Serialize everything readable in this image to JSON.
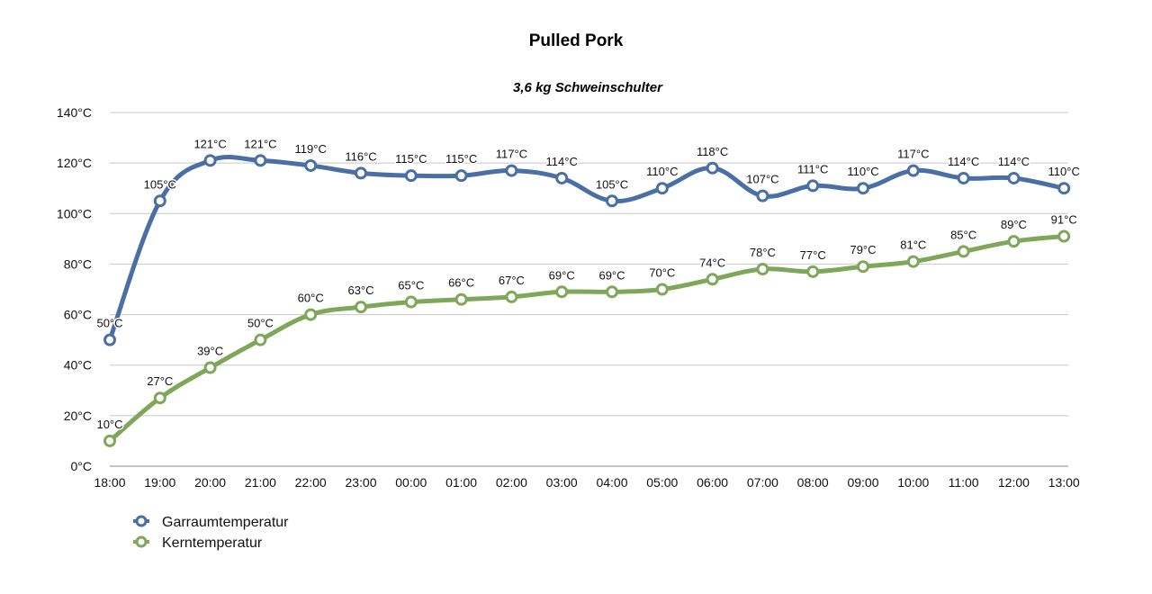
{
  "chart_data": {
    "type": "line",
    "title": "Pulled Pork",
    "subtitle": "3,6 kg Schweinschulter",
    "xlabel": "",
    "ylabel": "",
    "categories": [
      "18:00",
      "19:00",
      "20:00",
      "21:00",
      "22:00",
      "23:00",
      "00:00",
      "01:00",
      "02:00",
      "03:00",
      "04:00",
      "05:00",
      "06:00",
      "07:00",
      "08:00",
      "09:00",
      "10:00",
      "11:00",
      "12:00",
      "13:00"
    ],
    "ylim": [
      0,
      140
    ],
    "yticks": [
      0,
      20,
      40,
      60,
      80,
      100,
      120,
      140
    ],
    "y_unit": "°C",
    "grid": true,
    "legend_position": "bottom-left",
    "series": [
      {
        "name": "Garraumtemperatur",
        "color": "#4a6fa5",
        "values": [
          50,
          105,
          121,
          121,
          119,
          116,
          115,
          115,
          117,
          114,
          105,
          110,
          118,
          107,
          111,
          110,
          117,
          114,
          114,
          110
        ]
      },
      {
        "name": "Kerntemperatur",
        "color": "#7fa75a",
        "values": [
          10,
          27,
          39,
          50,
          60,
          63,
          65,
          66,
          67,
          69,
          69,
          70,
          74,
          78,
          77,
          79,
          81,
          85,
          89,
          91
        ]
      }
    ]
  }
}
